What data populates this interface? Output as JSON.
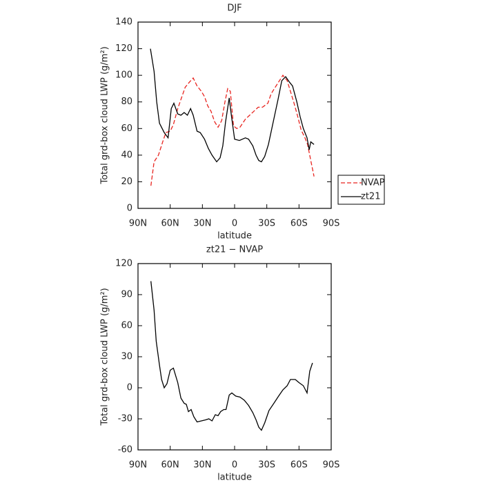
{
  "chart_data": [
    {
      "type": "line",
      "title": "DJF",
      "x_label": "latitude",
      "y_label": "Total grd-box cloud LWP (g/m²)",
      "xlim": [
        90,
        -90
      ],
      "xticks": [
        {
          "value": 90,
          "label": "90N"
        },
        {
          "value": 60,
          "label": "60N"
        },
        {
          "value": 30,
          "label": "30N"
        },
        0,
        {
          "value": -30,
          "label": "30S"
        },
        {
          "value": -60,
          "label": "60S"
        },
        {
          "value": -90,
          "label": "90S"
        }
      ],
      "ylim": [
        0,
        140
      ],
      "yticks": [
        0,
        20,
        40,
        60,
        80,
        100,
        120,
        140
      ],
      "legend": "right",
      "series": [
        {
          "name": "NVAP",
          "color": "#e8231e",
          "dash": true,
          "x": [
            78,
            75,
            71,
            67,
            64,
            60,
            57,
            53,
            49.5,
            46,
            42,
            38.6,
            35,
            31,
            28,
            25,
            22,
            18.6,
            15.4,
            12,
            9,
            6.4,
            4,
            1,
            -2,
            -5,
            -10,
            -14,
            -18,
            -22,
            -26,
            -31,
            -34,
            -37,
            -41,
            -45,
            -49,
            -52,
            -55,
            -58.5,
            -62,
            -65.6,
            -68,
            -71,
            -74
          ],
          "values": [
            17,
            35,
            40,
            50,
            57,
            58,
            63,
            75,
            83,
            91,
            95,
            98,
            92,
            88,
            84,
            77,
            73,
            65,
            61,
            66,
            80,
            90,
            88,
            62,
            60,
            61,
            67,
            70,
            73,
            76,
            76,
            79,
            86,
            90,
            95,
            100,
            96,
            88,
            80,
            70,
            59,
            53,
            48,
            36,
            24
          ]
        },
        {
          "name": "zt21",
          "color": "#000000",
          "dash": false,
          "x": [
            78.4,
            75,
            72.6,
            70,
            65.6,
            62,
            59,
            56.6,
            53,
            50,
            47,
            44,
            41,
            38.6,
            35,
            32,
            28,
            24.4,
            21,
            16.7,
            13.5,
            11,
            8.4,
            5,
            3,
            0,
            -4.5,
            -10,
            -13,
            -17,
            -20,
            -22.5,
            -25,
            -28,
            -31.5,
            -36,
            -40.5,
            -44,
            -47.6,
            -51,
            -54,
            -58,
            -61,
            -64,
            -67.5,
            -69.5,
            -71,
            -74
          ],
          "values": [
            120,
            103,
            80,
            64,
            57,
            53,
            75,
            79,
            71,
            70,
            72,
            70,
            75,
            70,
            58,
            57,
            52,
            45,
            40,
            35,
            38,
            47,
            65,
            83,
            70,
            52,
            51,
            53,
            52,
            47,
            40,
            36,
            35,
            39,
            48,
            65,
            82,
            96,
            99,
            95,
            92,
            80,
            69,
            60,
            53,
            44,
            50,
            48
          ]
        }
      ]
    },
    {
      "type": "line",
      "title": "zt21 − NVAP",
      "x_label": "latitude",
      "y_label": "Total grd-box cloud LWP (g/m²)",
      "xlim": [
        90,
        -90
      ],
      "xticks": [
        {
          "value": 90,
          "label": "90N"
        },
        {
          "value": 60,
          "label": "60N"
        },
        {
          "value": 30,
          "label": "30N"
        },
        0,
        {
          "value": -30,
          "label": "30S"
        },
        {
          "value": -60,
          "label": "60S"
        },
        {
          "value": -90,
          "label": "90S"
        }
      ],
      "ylim": [
        -60,
        120
      ],
      "yticks": [
        -60,
        -30,
        0,
        30,
        60,
        90,
        120
      ],
      "series": [
        {
          "color": "#000000",
          "dash": false,
          "x": [
            78,
            75,
            73,
            70,
            68,
            65.6,
            63,
            60,
            57,
            53,
            50,
            47,
            45,
            43,
            40.5,
            38,
            35,
            31,
            27,
            24,
            21,
            18,
            15.4,
            13,
            10,
            8,
            5,
            2.6,
            -1,
            -5,
            -9,
            -13,
            -17,
            -20,
            -22.5,
            -25,
            -28,
            -32,
            -36.6,
            -41,
            -45,
            -49,
            -52,
            -56.6,
            -60,
            -64,
            -67.5,
            -70,
            -72.6
          ],
          "values": [
            103,
            75,
            45,
            22,
            8,
            0,
            4,
            17,
            19,
            5,
            -10,
            -15,
            -16,
            -23,
            -21,
            -28,
            -33,
            -32,
            -31,
            -30,
            -32,
            -26,
            -27,
            -23,
            -21,
            -21,
            -7,
            -5,
            -8,
            -9,
            -12,
            -17,
            -24,
            -31,
            -38,
            -41,
            -34,
            -22,
            -15,
            -8,
            -2,
            2,
            8,
            8,
            5,
            2,
            -5,
            16,
            24
          ]
        }
      ]
    }
  ]
}
